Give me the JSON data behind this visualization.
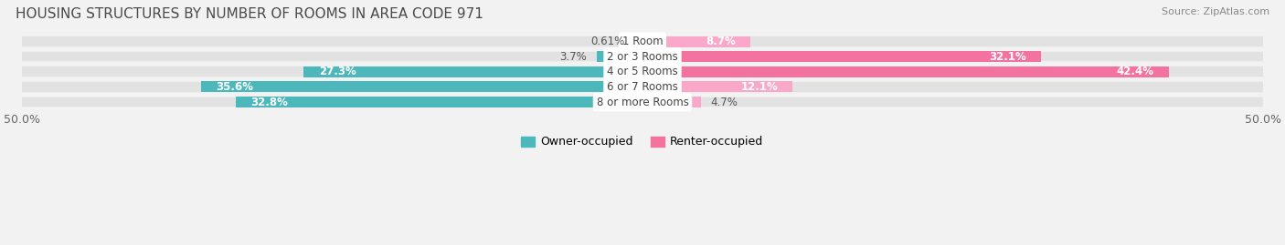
{
  "title": "HOUSING STRUCTURES BY NUMBER OF ROOMS IN AREA CODE 971",
  "source": "Source: ZipAtlas.com",
  "categories": [
    "1 Room",
    "2 or 3 Rooms",
    "4 or 5 Rooms",
    "6 or 7 Rooms",
    "8 or more Rooms"
  ],
  "owner_values": [
    0.61,
    3.7,
    27.3,
    35.6,
    32.8
  ],
  "renter_values": [
    8.7,
    32.1,
    42.4,
    12.1,
    4.7
  ],
  "owner_color": "#4db8bb",
  "renter_color": "#f472a0",
  "renter_color_light": "#f9a8c9",
  "xlim": 50.0,
  "bg_color": "#f2f2f2",
  "row_bg_color": "#e2e2e2",
  "white_sep_color": "#f2f2f2",
  "title_fontsize": 11,
  "cat_fontsize": 8.5,
  "val_fontsize": 8.5,
  "tick_fontsize": 9,
  "source_fontsize": 8,
  "legend_fontsize": 9
}
